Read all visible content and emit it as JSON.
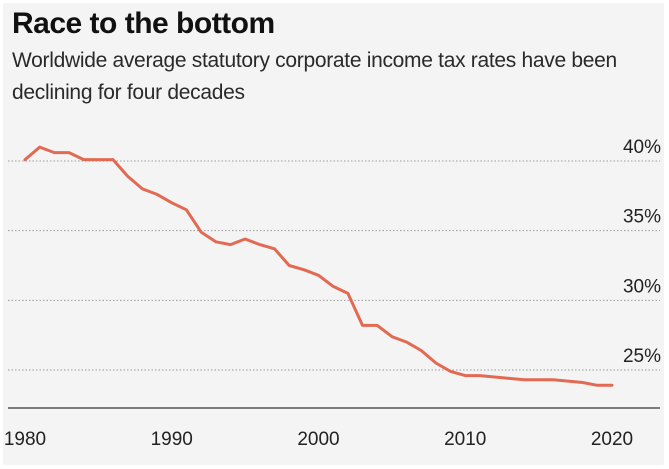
{
  "header": {
    "title": "Race to the bottom",
    "subtitle": "Worldwide average statutory corporate income tax rates have been declining for four decades"
  },
  "colors": {
    "line": "#e36a52",
    "grid": "#9a9a9a",
    "axis": "#333333",
    "background": "#f4f4f4"
  },
  "chart_data": {
    "type": "line",
    "title": "Race to the bottom",
    "subtitle": "Worldwide average statutory corporate income tax rates have been declining for four decades",
    "xlabel": "",
    "ylabel": "",
    "xlim": [
      1980,
      2020
    ],
    "ylim": [
      22.5,
      40
    ],
    "grid": true,
    "x_ticks": [
      1980,
      1990,
      2000,
      2010,
      2020
    ],
    "x_tick_labels": [
      "1980",
      "1990",
      "2000",
      "2010",
      "2020"
    ],
    "y_ticks": [
      25,
      30,
      35,
      40
    ],
    "y_tick_labels": [
      "25%",
      "30%",
      "35%",
      "40%"
    ],
    "series": [
      {
        "name": "Worldwide average statutory corporate income tax rate",
        "x": [
          1980,
          1981,
          1982,
          1983,
          1984,
          1985,
          1986,
          1987,
          1988,
          1989,
          1990,
          1991,
          1992,
          1993,
          1994,
          1995,
          1996,
          1997,
          1998,
          1999,
          2000,
          2001,
          2002,
          2003,
          2004,
          2005,
          2006,
          2007,
          2008,
          2009,
          2010,
          2011,
          2012,
          2013,
          2014,
          2015,
          2016,
          2017,
          2018,
          2019,
          2020
        ],
        "values": [
          40.1,
          41.0,
          40.6,
          40.6,
          40.1,
          40.1,
          40.1,
          38.9,
          38.0,
          37.6,
          37.0,
          36.5,
          34.9,
          34.2,
          34.0,
          34.4,
          34.0,
          33.7,
          32.5,
          32.2,
          31.8,
          31.0,
          30.5,
          28.2,
          28.2,
          27.4,
          27.0,
          26.4,
          25.5,
          24.9,
          24.6,
          24.6,
          24.5,
          24.4,
          24.3,
          24.3,
          24.3,
          24.2,
          24.1,
          23.9,
          23.9
        ]
      }
    ]
  }
}
